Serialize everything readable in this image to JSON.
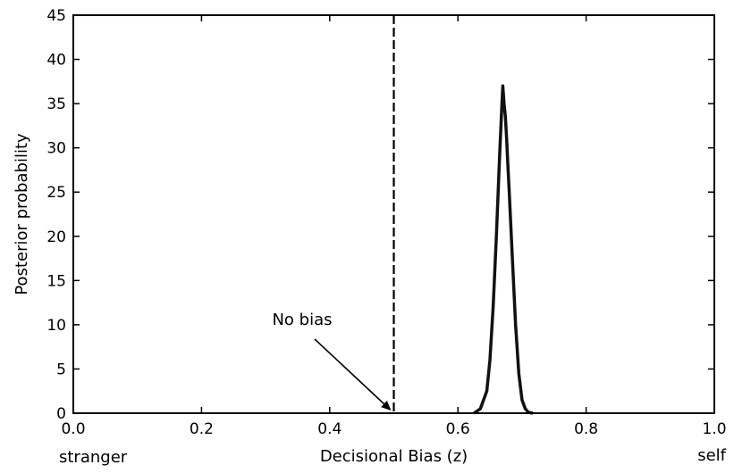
{
  "chart_data": {
    "type": "line",
    "title": "",
    "xlabel": "Decisional Bias (z)",
    "ylabel": "Posterior probability",
    "xlim": [
      0.0,
      1.0
    ],
    "ylim": [
      0,
      45
    ],
    "x_ticks": [
      "0.0",
      "0.2",
      "0.4",
      "0.6",
      "0.8",
      "1.0"
    ],
    "y_ticks": [
      "0",
      "5",
      "10",
      "15",
      "20",
      "25",
      "30",
      "35",
      "40",
      "45"
    ],
    "x_end_labels": {
      "left": "stranger",
      "right": "self"
    },
    "grid": false,
    "legend": "none",
    "reference_line": {
      "x": 0.5,
      "style": "dashed",
      "color": "#000000"
    },
    "annotation": {
      "text": "No bias",
      "points_to": [
        0.5,
        0
      ]
    },
    "series": [
      {
        "color": "#111111",
        "x": [
          0.625,
          0.635,
          0.645,
          0.65,
          0.655,
          0.66,
          0.665,
          0.668,
          0.67,
          0.672,
          0.674,
          0.676,
          0.678,
          0.68,
          0.685,
          0.69,
          0.695,
          0.7,
          0.705,
          0.71,
          0.717
        ],
        "y": [
          0,
          0.5,
          2.5,
          6,
          12,
          20,
          29,
          34,
          37,
          35,
          33.5,
          31,
          28,
          25,
          17.5,
          10,
          4.5,
          1.5,
          0.5,
          0.1,
          0
        ]
      }
    ]
  }
}
